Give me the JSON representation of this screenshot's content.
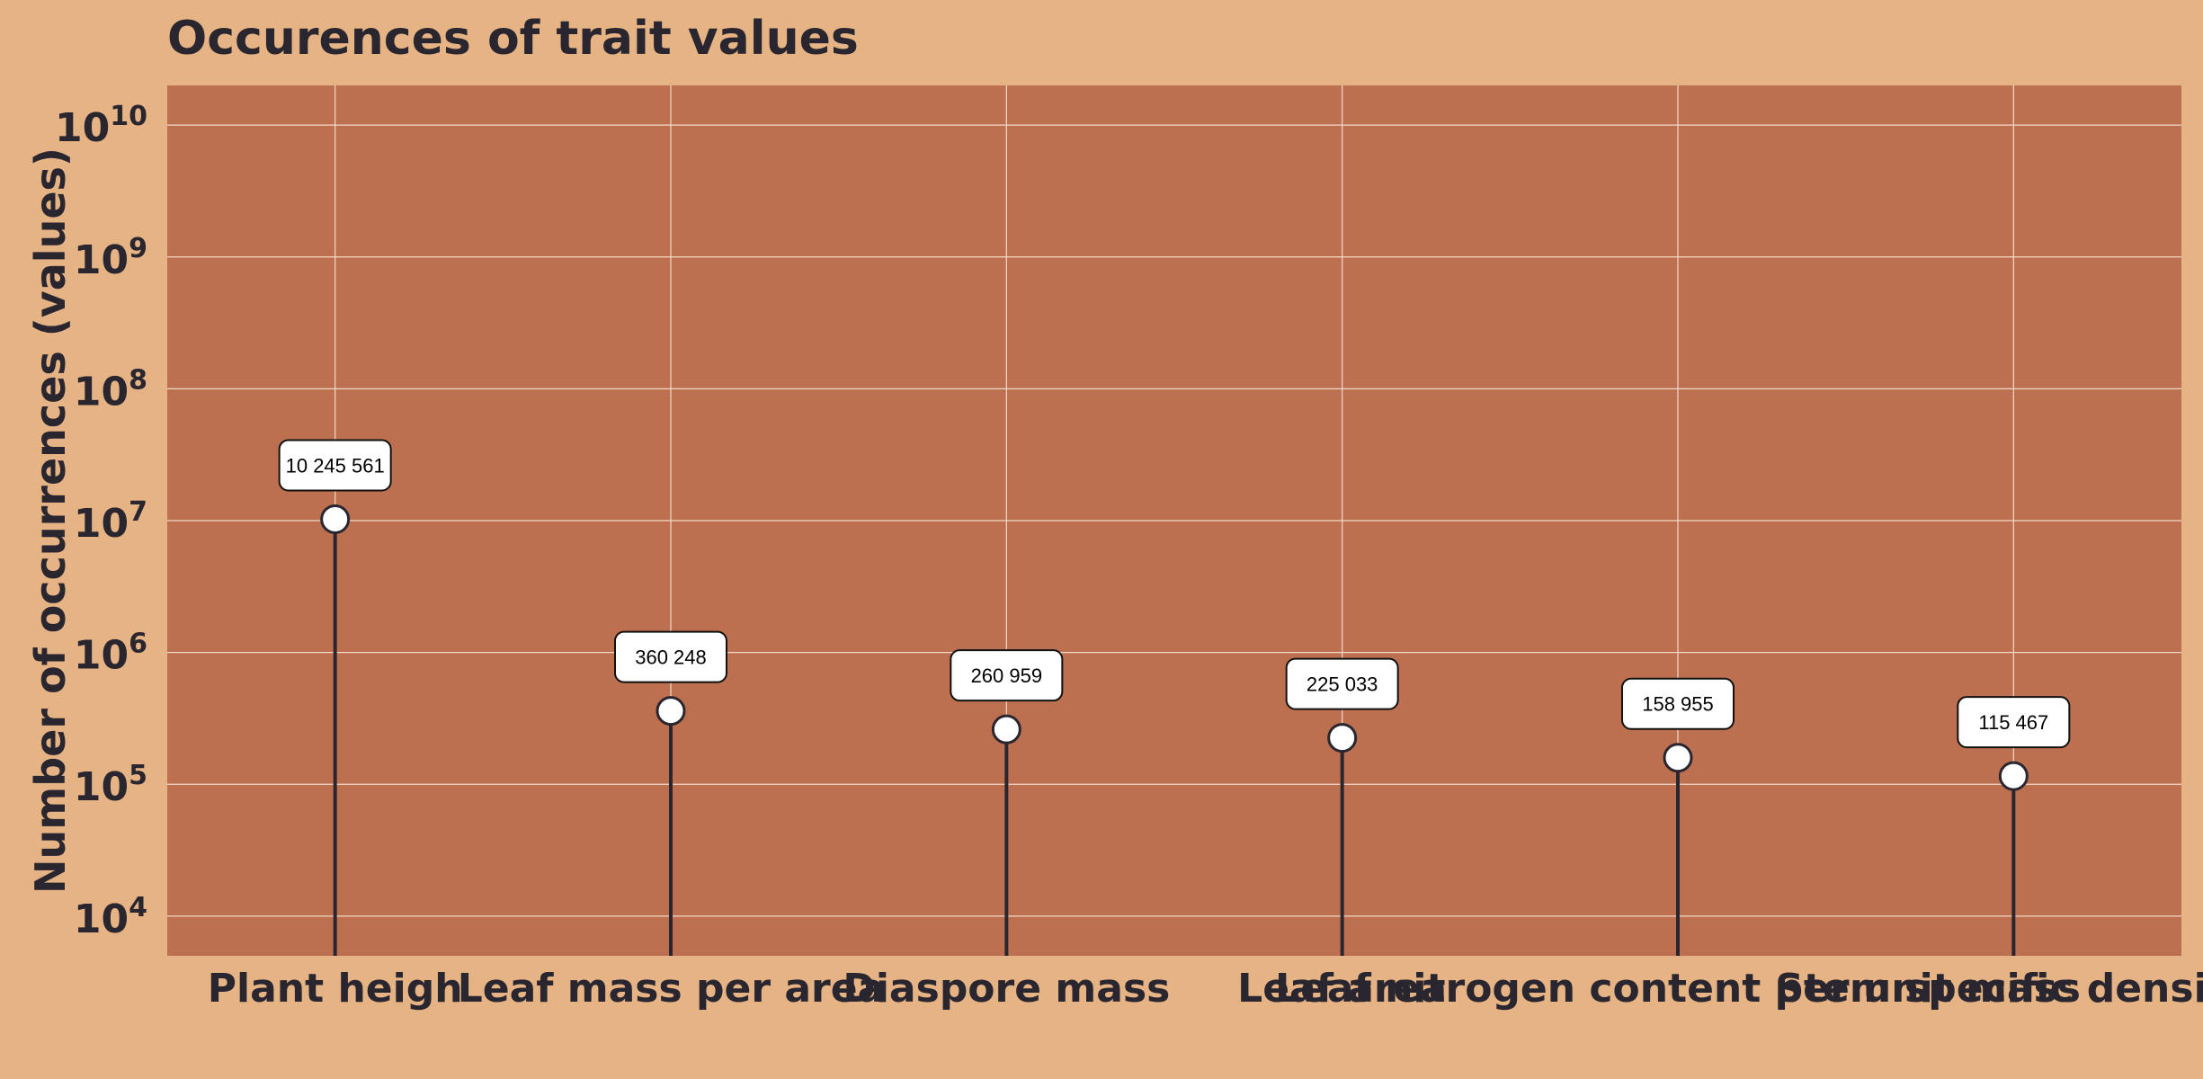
{
  "chart_data": {
    "type": "lollipop",
    "title": "Occurences of trait values",
    "xlabel": "",
    "ylabel": "Number of occurrences (values)",
    "yscale": "log",
    "ylim": [
      5000,
      20000000000
    ],
    "ytick_labels": [
      {
        "value": 10000,
        "base": "10",
        "exp": "4"
      },
      {
        "value": 100000,
        "base": "10",
        "exp": "5"
      },
      {
        "value": 1000000,
        "base": "10",
        "exp": "6"
      },
      {
        "value": 10000000,
        "base": "10",
        "exp": "7"
      },
      {
        "value": 100000000,
        "base": "10",
        "exp": "8"
      },
      {
        "value": 1000000000,
        "base": "10",
        "exp": "9"
      },
      {
        "value": 10000000000,
        "base": "10",
        "exp": "10"
      }
    ],
    "categories": [
      "Plant heigh",
      "Leaf mass per area",
      "Diaspore mass",
      "Leaf area",
      "Leaf nitrogen content per unit mass",
      "Stem specific density"
    ],
    "values": [
      10245561,
      360248,
      260959,
      225033,
      158955,
      115467
    ],
    "data_labels": [
      "10 245 561",
      "360 248",
      "260 959",
      "225 033",
      "158 955",
      "115 467"
    ],
    "grid": true,
    "legend": "none",
    "colors": {
      "background": "#e6b385",
      "plot_background": "#bd7050",
      "grid": "#f3d9c7",
      "stem": "#2a2630",
      "marker_fill": "#ffffff",
      "text": "#2a2630"
    }
  }
}
